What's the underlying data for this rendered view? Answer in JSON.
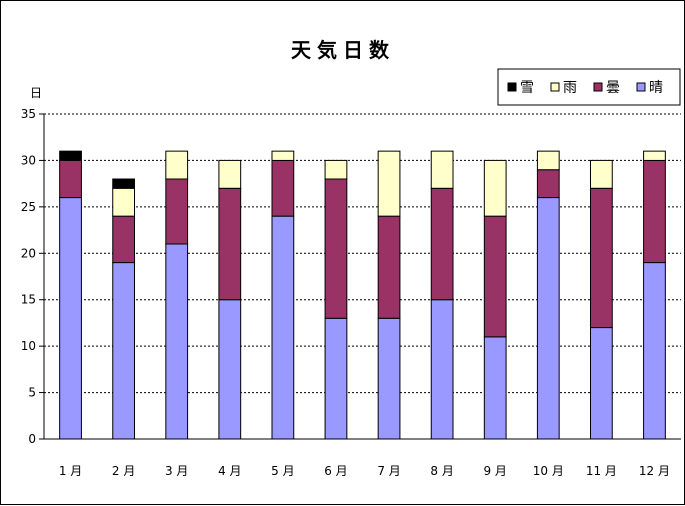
{
  "chart_data": {
    "type": "bar",
    "stacked": true,
    "title": "天気日数",
    "ylabel": "日",
    "xlabel": "",
    "ylim": [
      0,
      35
    ],
    "yticks": [
      0,
      5,
      10,
      15,
      20,
      25,
      30,
      35
    ],
    "grid": true,
    "legend_position": "top-right",
    "categories": [
      "1 月",
      "2 月",
      "3 月",
      "4 月",
      "5 月",
      "6 月",
      "7 月",
      "8 月",
      "9 月",
      "10 月",
      "11 月",
      "12 月"
    ],
    "series": [
      {
        "name": "晴",
        "color": "#9999ff",
        "values": [
          26,
          19,
          21,
          15,
          24,
          13,
          13,
          15,
          11,
          26,
          12,
          19
        ]
      },
      {
        "name": "曇",
        "color": "#993366",
        "values": [
          4,
          5,
          7,
          12,
          6,
          15,
          11,
          12,
          13,
          3,
          15,
          11
        ]
      },
      {
        "name": "雨",
        "color": "#ffffcc",
        "values": [
          0,
          3,
          3,
          3,
          1,
          2,
          7,
          4,
          6,
          2,
          3,
          1
        ]
      },
      {
        "name": "雪",
        "color": "#000000",
        "values": [
          1,
          1,
          0,
          0,
          0,
          0,
          0,
          0,
          0,
          0,
          0,
          0
        ]
      }
    ],
    "legend_order": [
      "雪",
      "雨",
      "曇",
      "晴"
    ]
  }
}
